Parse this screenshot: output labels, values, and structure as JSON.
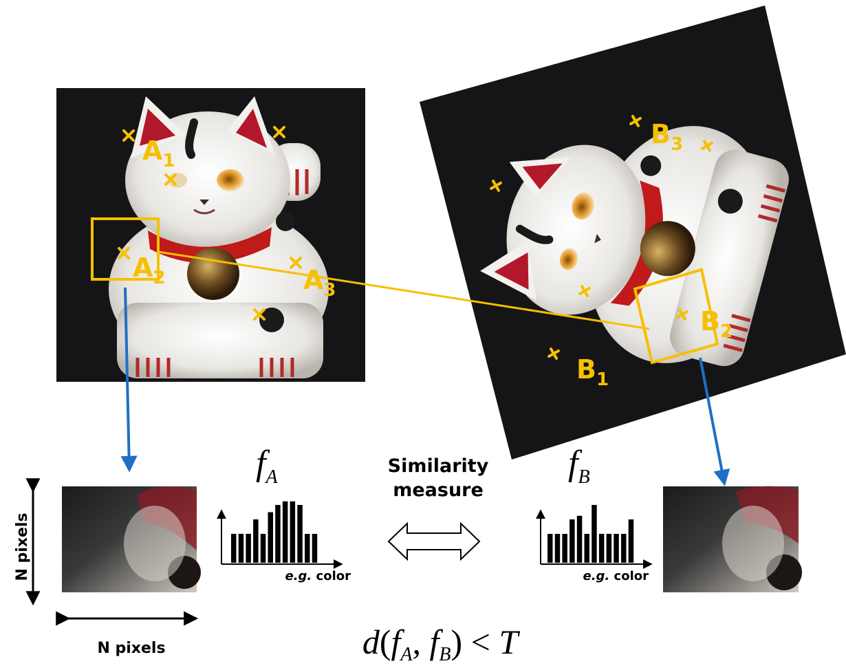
{
  "colors": {
    "marker": "#f5c000",
    "arrow_blue": "#1f6fc4",
    "background_dark": "#151517"
  },
  "image_a": {
    "points": [
      {
        "id": "A1",
        "letter": "A",
        "sub": "1"
      },
      {
        "id": "A2",
        "letter": "A",
        "sub": "2"
      },
      {
        "id": "A3",
        "letter": "A",
        "sub": "3"
      }
    ]
  },
  "image_b": {
    "points": [
      {
        "id": "B1",
        "letter": "B",
        "sub": "1"
      },
      {
        "id": "B2",
        "letter": "B",
        "sub": "2"
      },
      {
        "id": "B3",
        "letter": "B",
        "sub": "3"
      }
    ]
  },
  "patch_size": {
    "vertical_label": "N pixels",
    "horizontal_label": "N pixels"
  },
  "histogram_a": {
    "f_letter": "f",
    "f_sub": "A",
    "xlabel_eg": "e.g.",
    "xlabel_rest": " color",
    "values": [
      4,
      4,
      4,
      6,
      4,
      7,
      8,
      8.5,
      8.5,
      8,
      4,
      4
    ]
  },
  "histogram_b": {
    "f_letter": "f",
    "f_sub": "B",
    "xlabel_eg": "e.g.",
    "xlabel_rest": " color",
    "values": [
      4,
      4,
      4,
      6,
      6.5,
      4,
      8,
      4,
      4,
      4,
      4,
      6
    ]
  },
  "similarity": {
    "line1": "Similarity",
    "line2": "measure"
  },
  "formula": {
    "d": "d",
    "open": "(",
    "f1": "f",
    "s1": "A",
    "comma": ", ",
    "f2": "f",
    "s2": "B",
    "close": ")",
    "lt": " < ",
    "T": "T"
  }
}
